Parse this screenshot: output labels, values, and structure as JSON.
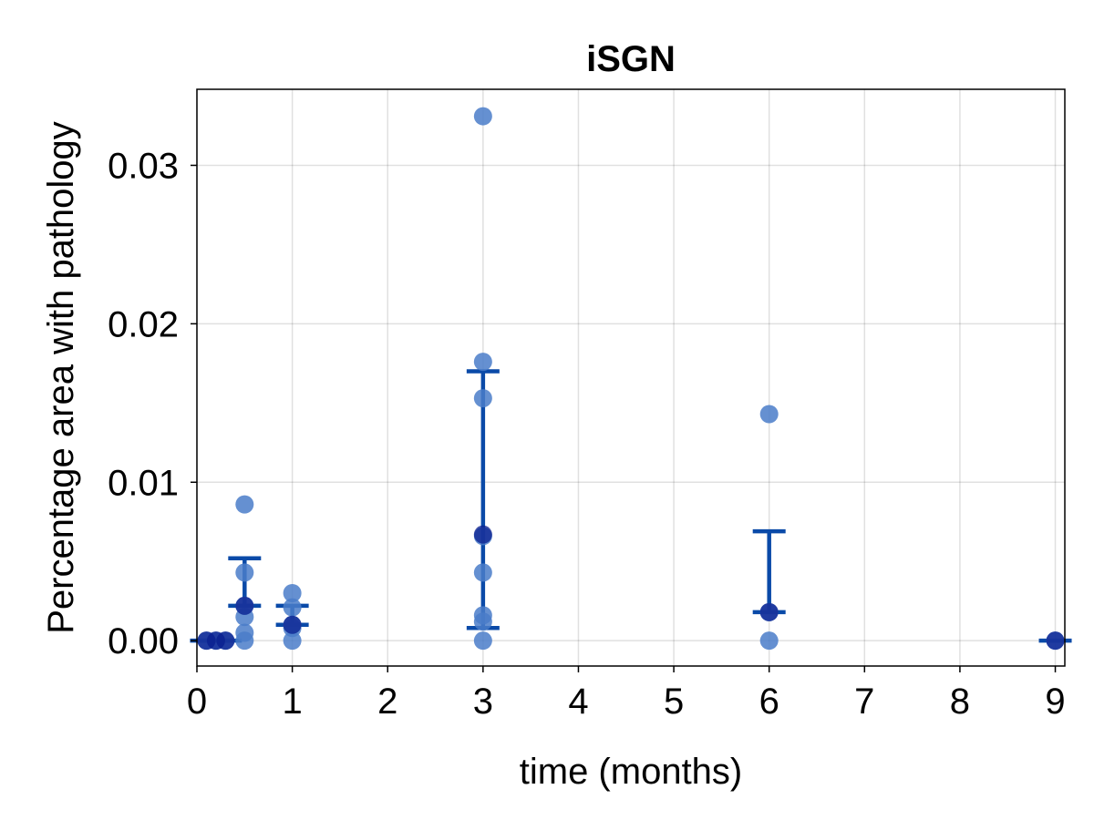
{
  "chart_data": {
    "type": "scatter",
    "title": "iSGN",
    "xlabel": "time (months)",
    "ylabel": "Percentage area with pathology",
    "xlim": [
      0,
      9.1
    ],
    "ylim": [
      -0.0016,
      0.0348
    ],
    "xticks": [
      0,
      1,
      2,
      3,
      4,
      5,
      6,
      7,
      8,
      9
    ],
    "xtick_labels": [
      "0",
      "1",
      "2",
      "3",
      "4",
      "5",
      "6",
      "7",
      "8",
      "9"
    ],
    "yticks": [
      0.0,
      0.01,
      0.02,
      0.03
    ],
    "ytick_labels": [
      "0.00",
      "0.01",
      "0.02",
      "0.03"
    ],
    "grid": true,
    "legend": "none",
    "colors": {
      "points": "#4a7cc9",
      "mean": "#0a1f8f",
      "errorbar": "#0a4aa8"
    },
    "points": [
      {
        "x": 0.1,
        "y": 0.0
      },
      {
        "x": 0.2,
        "y": 0.0
      },
      {
        "x": 0.3,
        "y": 0.0
      },
      {
        "x": 0.5,
        "y": 0.0086
      },
      {
        "x": 0.5,
        "y": 0.0043
      },
      {
        "x": 0.5,
        "y": 0.0022
      },
      {
        "x": 0.5,
        "y": 0.0015
      },
      {
        "x": 0.5,
        "y": 0.0005
      },
      {
        "x": 0.5,
        "y": 0.0
      },
      {
        "x": 1,
        "y": 0.003
      },
      {
        "x": 1,
        "y": 0.0021
      },
      {
        "x": 1,
        "y": 0.001
      },
      {
        "x": 1,
        "y": 0.0008
      },
      {
        "x": 1,
        "y": 0.0
      },
      {
        "x": 3,
        "y": 0.0331
      },
      {
        "x": 3,
        "y": 0.0176
      },
      {
        "x": 3,
        "y": 0.0153
      },
      {
        "x": 3,
        "y": 0.0066
      },
      {
        "x": 3,
        "y": 0.0043
      },
      {
        "x": 3,
        "y": 0.0016
      },
      {
        "x": 3,
        "y": 0.0012
      },
      {
        "x": 3,
        "y": 0.0
      },
      {
        "x": 6,
        "y": 0.0143
      },
      {
        "x": 6,
        "y": 0.0018
      },
      {
        "x": 6,
        "y": 0.0
      },
      {
        "x": 9,
        "y": 0.0
      }
    ],
    "summary": [
      {
        "x": 0.1,
        "mean": 0.0,
        "lower": 0.0,
        "upper": 0.0
      },
      {
        "x": 0.2,
        "mean": 0.0,
        "lower": 0.0,
        "upper": 0.0
      },
      {
        "x": 0.3,
        "mean": 0.0,
        "lower": 0.0,
        "upper": 0.0
      },
      {
        "x": 0.5,
        "mean": 0.0022,
        "lower": 0.0022,
        "upper": 0.0052
      },
      {
        "x": 1,
        "mean": 0.001,
        "lower": 0.001,
        "upper": 0.0022
      },
      {
        "x": 3,
        "mean": 0.0067,
        "lower": 0.0008,
        "upper": 0.017
      },
      {
        "x": 6,
        "mean": 0.0018,
        "lower": 0.0018,
        "upper": 0.0069
      },
      {
        "x": 9,
        "mean": 0.0,
        "lower": 0.0,
        "upper": 0.0
      }
    ]
  }
}
